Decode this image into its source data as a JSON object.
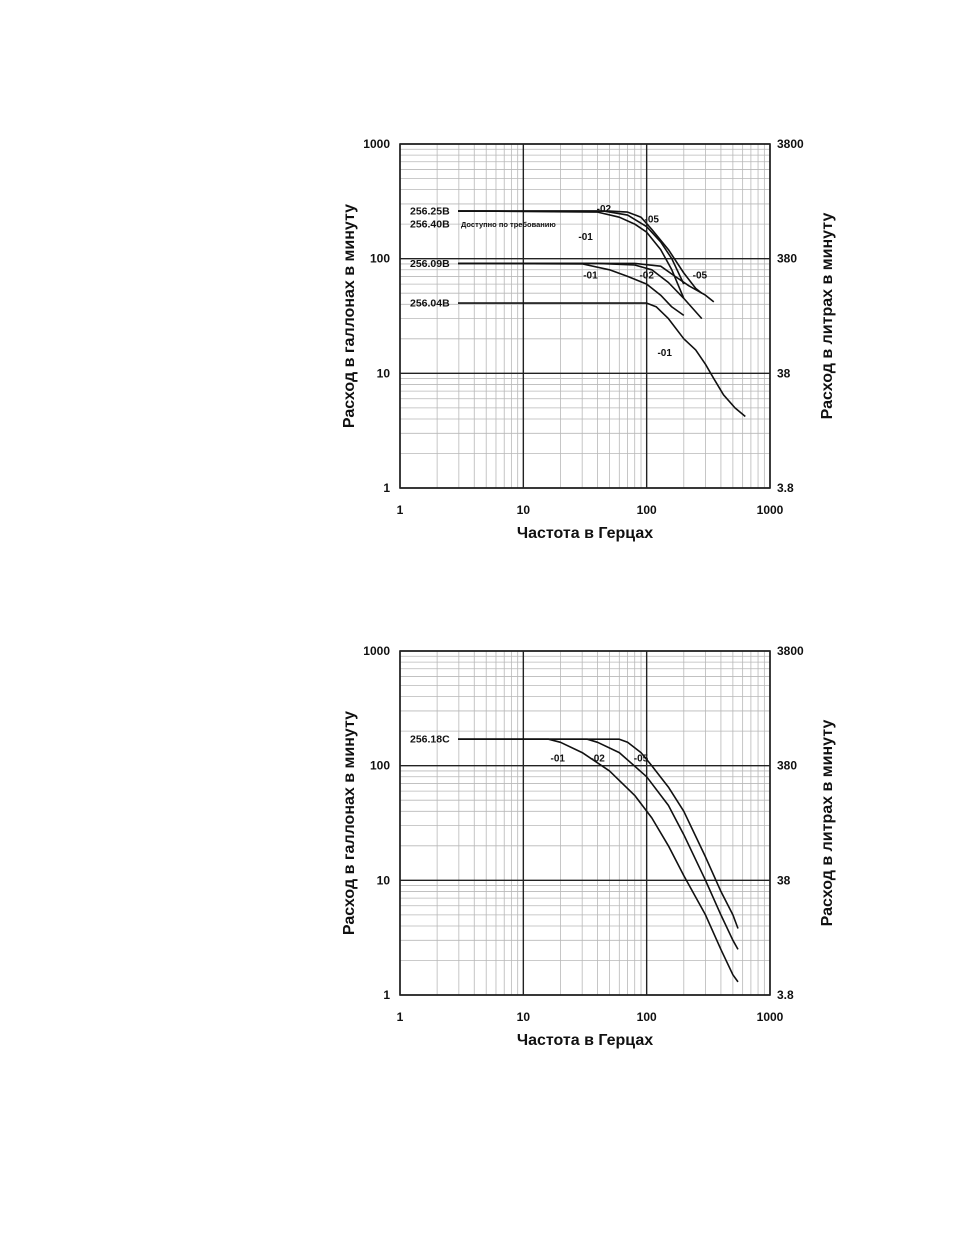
{
  "chart_data": [
    {
      "type": "line",
      "x_scale": "log",
      "y_scale": "log",
      "xlim": [
        1,
        1000
      ],
      "ylim": [
        1,
        1000
      ],
      "x_ticks": [
        "1",
        "10",
        "100",
        "1000"
      ],
      "y_ticks": [
        "1",
        "10",
        "100",
        "1000"
      ],
      "y2_ticks": [
        "3.8",
        "38",
        "380",
        "3800"
      ],
      "xlabel": "Частота в Герцах",
      "ylabel": "Расход в галлонах в минуту",
      "y2label": "Расход в литрах в минуту",
      "grid": true,
      "note": "Доступно по требованию",
      "model_labels": [
        {
          "text": "256.40B",
          "y": 200
        },
        {
          "text": "256.25B",
          "y": 260
        },
        {
          "text": "256.09B",
          "y": 91
        },
        {
          "text": "256.04B",
          "y": 41
        }
      ],
      "series": [
        {
          "name": "-01",
          "model": "256.25B",
          "points": [
            [
              5,
              260
            ],
            [
              40,
              255
            ],
            [
              60,
              230
            ],
            [
              80,
              200
            ],
            [
              100,
              170
            ],
            [
              130,
              120
            ],
            [
              160,
              80
            ],
            [
              200,
              45
            ]
          ]
        },
        {
          "name": "-02",
          "model": "256.25B",
          "points": [
            [
              5,
              260
            ],
            [
              45,
              260
            ],
            [
              70,
              240
            ],
            [
              100,
              190
            ],
            [
              130,
              140
            ],
            [
              160,
              100
            ],
            [
              200,
              60
            ]
          ]
        },
        {
          "name": "-05",
          "model": "256.25B",
          "points": [
            [
              5,
              260
            ],
            [
              50,
              260
            ],
            [
              70,
              255
            ],
            [
              90,
              230
            ],
            [
              110,
              180
            ],
            [
              150,
              120
            ],
            [
              200,
              75
            ],
            [
              250,
              55
            ],
            [
              280,
              50
            ]
          ]
        },
        {
          "name": "-01",
          "model": "256.09B",
          "points": [
            [
              5,
              91
            ],
            [
              30,
              90
            ],
            [
              50,
              80
            ],
            [
              70,
              70
            ],
            [
              100,
              60
            ],
            [
              130,
              48
            ],
            [
              160,
              38
            ],
            [
              200,
              32
            ]
          ]
        },
        {
          "name": "-02",
          "model": "256.09B",
          "points": [
            [
              5,
              91
            ],
            [
              40,
              91
            ],
            [
              80,
              88
            ],
            [
              110,
              80
            ],
            [
              150,
              62
            ],
            [
              200,
              45
            ],
            [
              280,
              30
            ]
          ]
        },
        {
          "name": "-05",
          "model": "256.09B",
          "points": [
            [
              5,
              91
            ],
            [
              80,
              91
            ],
            [
              130,
              86
            ],
            [
              170,
              70
            ],
            [
              220,
              58
            ],
            [
              300,
              48
            ],
            [
              350,
              42
            ]
          ]
        },
        {
          "name": "-01",
          "model": "256.04B",
          "points": [
            [
              5,
              41
            ],
            [
              100,
              41
            ],
            [
              120,
              38
            ],
            [
              150,
              30
            ],
            [
              200,
              20
            ],
            [
              250,
              16
            ],
            [
              300,
              12
            ],
            [
              350,
              9
            ],
            [
              420,
              6.5
            ],
            [
              520,
              5
            ],
            [
              630,
              4.2
            ]
          ]
        }
      ],
      "series_labels": [
        {
          "text": "-02",
          "x": 45,
          "y": 270
        },
        {
          "text": "-05",
          "x": 110,
          "y": 220
        },
        {
          "text": "-01",
          "x": 32,
          "y": 155
        },
        {
          "text": "-01",
          "x": 35,
          "y": 71
        },
        {
          "text": "-02",
          "x": 100,
          "y": 71
        },
        {
          "text": "-05",
          "x": 270,
          "y": 71
        },
        {
          "text": "-01",
          "x": 140,
          "y": 15
        }
      ]
    },
    {
      "type": "line",
      "x_scale": "log",
      "y_scale": "log",
      "xlim": [
        1,
        1000
      ],
      "ylim": [
        1,
        1000
      ],
      "x_ticks": [
        "1",
        "10",
        "100",
        "1000"
      ],
      "y_ticks": [
        "1",
        "10",
        "100",
        "1000"
      ],
      "y2_ticks": [
        "3.8",
        "38",
        "380",
        "3800"
      ],
      "xlabel": "Частота в Герцах",
      "ylabel": "Расход в галлонах в минуту",
      "y2label": "Расход в литрах в минуту",
      "grid": true,
      "model_labels": [
        {
          "text": "256.18C",
          "y": 170
        }
      ],
      "series": [
        {
          "name": "-01",
          "model": "256.18C",
          "points": [
            [
              5,
              170
            ],
            [
              16,
              170
            ],
            [
              20,
              160
            ],
            [
              30,
              130
            ],
            [
              50,
              90
            ],
            [
              80,
              55
            ],
            [
              110,
              35
            ],
            [
              150,
              20
            ],
            [
              200,
              11
            ],
            [
              300,
              5
            ],
            [
              400,
              2.5
            ],
            [
              500,
              1.5
            ],
            [
              550,
              1.3
            ]
          ]
        },
        {
          "name": "-02",
          "model": "256.18C",
          "points": [
            [
              5,
              170
            ],
            [
              33,
              170
            ],
            [
              40,
              160
            ],
            [
              60,
              130
            ],
            [
              100,
              80
            ],
            [
              150,
              45
            ],
            [
              200,
              25
            ],
            [
              300,
              10
            ],
            [
              400,
              5
            ],
            [
              500,
              3
            ],
            [
              550,
              2.5
            ]
          ]
        },
        {
          "name": "-05",
          "model": "256.18C",
          "points": [
            [
              5,
              170
            ],
            [
              60,
              170
            ],
            [
              70,
              160
            ],
            [
              90,
              130
            ],
            [
              110,
              100
            ],
            [
              150,
              65
            ],
            [
              200,
              40
            ],
            [
              300,
              16
            ],
            [
              400,
              8
            ],
            [
              500,
              5
            ],
            [
              550,
              3.8
            ]
          ]
        }
      ],
      "series_labels": [
        {
          "text": "-01",
          "x": 19,
          "y": 115
        },
        {
          "text": "-02",
          "x": 40,
          "y": 115
        },
        {
          "text": "-05",
          "x": 90,
          "y": 115
        }
      ]
    }
  ]
}
